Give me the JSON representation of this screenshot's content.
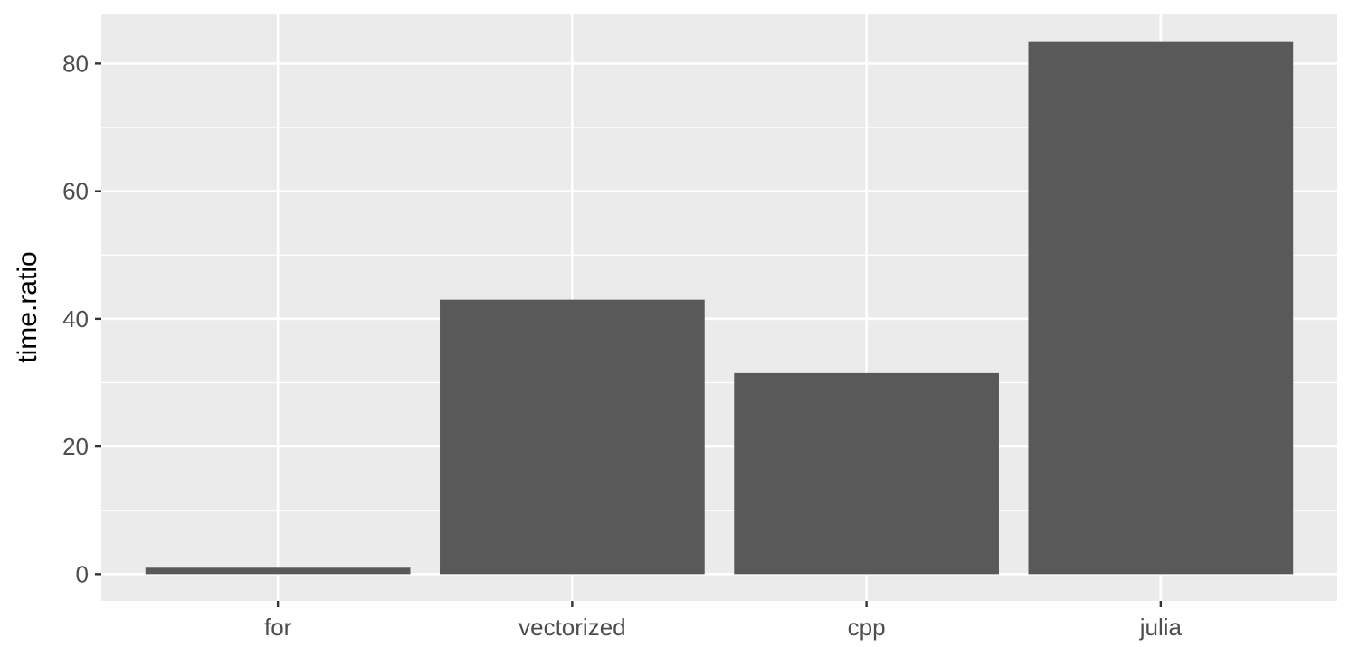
{
  "chart_data": {
    "type": "bar",
    "title": "",
    "xlabel": "",
    "ylabel": "time.ratio",
    "categories": [
      "for",
      "vectorized",
      "cpp",
      "julia"
    ],
    "values": [
      1,
      43,
      31.5,
      83.5
    ],
    "ylim": [
      -4.2,
      87.7
    ],
    "yticks": [
      0,
      20,
      40,
      60,
      80
    ],
    "grid": true,
    "legend": "none",
    "colors": {
      "panel_background": "#ebebeb",
      "grid": "#ffffff",
      "bar_fill": "#595959",
      "tick_text": "#4d4d4d",
      "axis_title": "#000000"
    }
  }
}
